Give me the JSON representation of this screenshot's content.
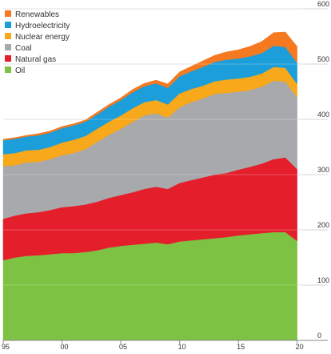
{
  "chart_data": {
    "type": "area",
    "stacked": true,
    "title": "",
    "xlabel": "",
    "ylabel": "",
    "x": [
      1995,
      1996,
      1997,
      1998,
      1999,
      2000,
      2001,
      2002,
      2003,
      2004,
      2005,
      2006,
      2007,
      2008,
      2009,
      2010,
      2011,
      2012,
      2013,
      2014,
      2015,
      2016,
      2017,
      2018,
      2019,
      2020
    ],
    "xticks": [
      {
        "value": 1995,
        "label": "95"
      },
      {
        "value": 2000,
        "label": "00"
      },
      {
        "value": 2005,
        "label": "05"
      },
      {
        "value": 2010,
        "label": "10"
      },
      {
        "value": 2015,
        "label": "15"
      },
      {
        "value": 2020,
        "label": "20"
      }
    ],
    "yticks": [
      0,
      100,
      200,
      300,
      400,
      500,
      600
    ],
    "ylim": [
      0,
      600
    ],
    "xlim": [
      1995,
      2020.5
    ],
    "grid": "horizontal",
    "legend_position": "top-left",
    "series": [
      {
        "name": "Oil",
        "color": "#7dc242",
        "values": [
          145,
          150,
          153,
          154,
          156,
          158,
          158,
          160,
          163,
          168,
          171,
          173,
          175,
          177,
          174,
          179,
          181,
          183,
          185,
          187,
          190,
          192,
          194,
          196,
          196,
          180
        ]
      },
      {
        "name": "Natural gas",
        "color": "#e41e2b",
        "values": [
          75,
          76,
          77,
          78,
          80,
          83,
          85,
          86,
          88,
          90,
          92,
          95,
          99,
          101,
          100,
          106,
          109,
          112,
          115,
          116,
          119,
          122,
          126,
          132,
          135,
          130
        ]
      },
      {
        "name": "Coal",
        "color": "#a7a9ac",
        "values": [
          95,
          91,
          92,
          91,
          92,
          94,
          96,
          100,
          108,
          114,
          120,
          127,
          133,
          133,
          129,
          137,
          141,
          143,
          146,
          145,
          141,
          139,
          139,
          142,
          137,
          130
        ]
      },
      {
        "name": "Nuclear energy",
        "color": "#f7a81b",
        "values": [
          22,
          22,
          22,
          22,
          22,
          23,
          24,
          24,
          24,
          24,
          24,
          25,
          24,
          24,
          24,
          25,
          24,
          23,
          23,
          24,
          24,
          24,
          24,
          25,
          25,
          24
        ]
      },
      {
        "name": "Hydroelectricity",
        "color": "#1b9ed9",
        "values": [
          25,
          26,
          25,
          26,
          26,
          26,
          26,
          26,
          26,
          27,
          28,
          29,
          29,
          30,
          30,
          31,
          32,
          34,
          35,
          36,
          36,
          37,
          37,
          38,
          38,
          38
        ]
      },
      {
        "name": "Renewables",
        "color": "#f47920",
        "values": [
          2,
          2,
          2,
          3,
          3,
          3,
          3,
          3,
          4,
          4,
          4,
          5,
          5,
          6,
          7,
          8,
          9,
          11,
          12,
          14,
          16,
          18,
          21,
          24,
          27,
          30
        ]
      }
    ]
  }
}
